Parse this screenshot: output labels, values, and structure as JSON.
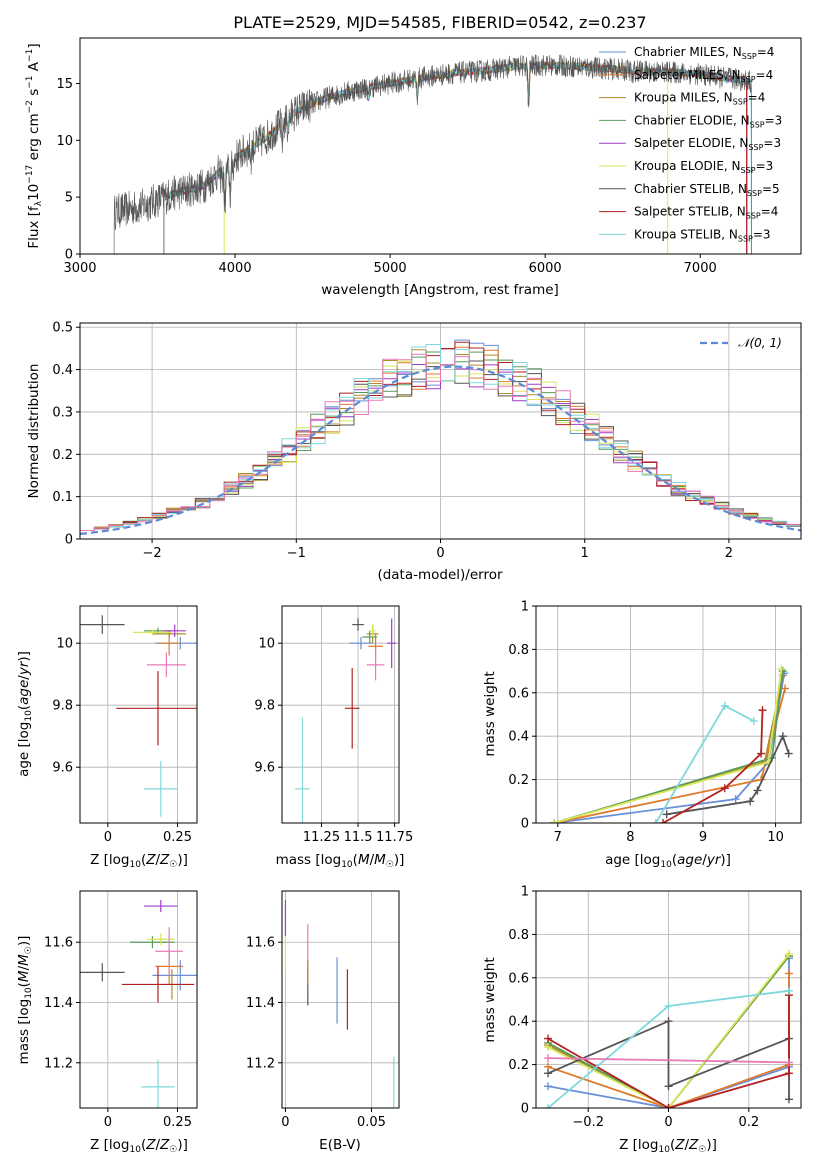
{
  "title": "PLATE=2529, MJD=54585, FIBERID=0542, z=0.237",
  "colors": {
    "chabrier_miles": "#6a8fd8",
    "salpeter_miles": "#e07b2c",
    "kroupa_miles": "#b08a2e",
    "chabrier_elodie": "#5a9a5a",
    "salpeter_elodie": "#a23cc8",
    "kroupa_elodie": "#d8e65a",
    "chabrier_stelib": "#555555",
    "salpeter_stelib": "#b22222",
    "kroupa_stelib": "#7fd8dc",
    "pink": "#e87ab8",
    "gaussian": "#5a8ad8",
    "grid": "#b0b0b0"
  },
  "legend_spectrum": [
    {
      "key": "chabrier_miles",
      "label": "Chabrier MILES, N"
    },
    {
      "key": "salpeter_miles",
      "label": "Salpeter MILES, N"
    },
    {
      "key": "kroupa_miles",
      "label": "Kroupa MILES, N"
    },
    {
      "key": "chabrier_elodie",
      "label": "Chabrier ELODIE, N"
    },
    {
      "key": "salpeter_elodie",
      "label": "Salpeter ELODIE, N"
    },
    {
      "key": "kroupa_elodie",
      "label": "Kroupa ELODIE, N"
    },
    {
      "key": "chabrier_stelib",
      "label": "Chabrier STELIB, N"
    },
    {
      "key": "salpeter_stelib",
      "label": "Salpeter STELIB, N"
    },
    {
      "key": "kroupa_stelib",
      "label": "Kroupa STELIB, N"
    }
  ],
  "legend_nssp": [
    "=4",
    "=4",
    "=4",
    "=3",
    "=3",
    "=3",
    "=5",
    "=4",
    "=3"
  ],
  "legend_sub": "SSP",
  "legend_gauss": "𝒩(0, 1)",
  "chart_data": [
    {
      "type": "line",
      "name": "spectrum",
      "xlabel": "wavelength [Angstrom, rest frame]",
      "ylabel": "Flux [f_λ 10^-17 erg cm^-2 s^-1 A^-1]",
      "xlim": [
        3000,
        7650
      ],
      "ylim": [
        0,
        19
      ],
      "xticks": [
        3000,
        4000,
        5000,
        6000,
        7000
      ],
      "yticks": [
        0,
        5,
        10,
        15
      ],
      "x_start": 3220,
      "x_end": 7330,
      "continuum_x": [
        3220,
        3400,
        3600,
        3800,
        4000,
        4200,
        4400,
        4600,
        4800,
        5000,
        5200,
        5400,
        5600,
        5800,
        6000,
        6200,
        6400,
        6600,
        6800,
        7000,
        7200,
        7330
      ],
      "continuum_y": [
        3.7,
        4.2,
        5.3,
        6.0,
        8.5,
        10.2,
        12.6,
        13.8,
        14.5,
        15.0,
        15.5,
        15.9,
        16.1,
        16.5,
        16.6,
        16.5,
        16.3,
        16.1,
        16.0,
        15.8,
        15.4,
        15.2
      ],
      "grid": false
    },
    {
      "type": "bar",
      "name": "residual-histogram",
      "xlabel": "(data-model)/error",
      "ylabel": "Normed distribution",
      "xlim": [
        -2.5,
        2.5
      ],
      "ylim": [
        0,
        0.51
      ],
      "xticks": [
        -2,
        -1,
        0,
        1,
        2
      ],
      "yticks": [
        0.0,
        0.1,
        0.2,
        0.3,
        0.4,
        0.5
      ],
      "bin_width": 0.1,
      "sigma": 0.98,
      "mu": 0.1,
      "grid": true,
      "legend": "top-right"
    },
    {
      "type": "scatter",
      "name": "age-vs-Z",
      "xlabel": "Z [log10(Z/Z☉)]",
      "ylabel": "age [log10(age/yr)]",
      "xlim": [
        -0.1,
        0.32
      ],
      "ylim": [
        9.42,
        10.12
      ],
      "xticks": [
        0.0,
        0.25
      ],
      "yticks": [
        9.6,
        9.8,
        10.0
      ],
      "points": [
        {
          "key": "chabrier_miles",
          "x": 0.26,
          "y": 10.0,
          "xerr": 0.09,
          "yerr": 0.02
        },
        {
          "key": "salpeter_miles",
          "x": 0.22,
          "y": 10.0,
          "xerr": 0.04,
          "yerr": 0.04
        },
        {
          "key": "kroupa_miles",
          "x": 0.22,
          "y": 10.03,
          "xerr": 0.06,
          "yerr": 0.01
        },
        {
          "key": "chabrier_elodie",
          "x": 0.18,
          "y": 10.04,
          "xerr": 0.05,
          "yerr": 0.01
        },
        {
          "key": "salpeter_elodie",
          "x": 0.24,
          "y": 10.04,
          "xerr": 0.04,
          "yerr": 0.02
        },
        {
          "key": "kroupa_elodie",
          "x": 0.16,
          "y": 10.035,
          "xerr": 0.07,
          "yerr": 0.01
        },
        {
          "key": "chabrier_stelib",
          "x": -0.02,
          "y": 10.06,
          "xerr": 0.08,
          "yerr": 0.03
        },
        {
          "key": "salpeter_stelib",
          "x": 0.18,
          "y": 9.79,
          "xerr": 0.15,
          "yerr": 0.12
        },
        {
          "key": "kroupa_stelib",
          "x": 0.19,
          "y": 9.53,
          "xerr": 0.06,
          "yerr": 0.09
        },
        {
          "key": "pink",
          "x": 0.21,
          "y": 9.93,
          "xerr": 0.07,
          "yerr": 0.04
        }
      ],
      "grid": true
    },
    {
      "type": "scatter",
      "name": "age-vs-mass",
      "xlabel": "mass [log10(M/M☉)]",
      "ylabel": "",
      "xlim": [
        10.98,
        11.78
      ],
      "ylim": [
        9.42,
        10.12
      ],
      "xticks": [
        11.25,
        11.5,
        11.75
      ],
      "yticks": [
        9.6,
        9.8,
        10.0
      ],
      "points": [
        {
          "key": "chabrier_miles",
          "x": 11.52,
          "y": 10.0,
          "xerr": 0.08,
          "yerr": 0.02
        },
        {
          "key": "salpeter_miles",
          "x": 11.62,
          "y": 9.99,
          "xerr": 0.05,
          "yerr": 0.04
        },
        {
          "key": "kroupa_miles",
          "x": 11.6,
          "y": 10.03,
          "xerr": 0.04,
          "yerr": 0.03
        },
        {
          "key": "chabrier_elodie",
          "x": 11.58,
          "y": 10.02,
          "xerr": 0.05,
          "yerr": 0.02
        },
        {
          "key": "salpeter_elodie",
          "x": 11.73,
          "y": 10.0,
          "xerr": 0.03,
          "yerr": 0.08
        },
        {
          "key": "kroupa_elodie",
          "x": 11.6,
          "y": 10.04,
          "xerr": 0.02,
          "yerr": 0.02
        },
        {
          "key": "chabrier_stelib",
          "x": 11.5,
          "y": 10.06,
          "xerr": 0.04,
          "yerr": 0.02
        },
        {
          "key": "salpeter_stelib",
          "x": 11.46,
          "y": 9.79,
          "xerr": 0.05,
          "yerr": 0.13
        },
        {
          "key": "kroupa_stelib",
          "x": 11.12,
          "y": 9.53,
          "xerr": 0.05,
          "yerr": 0.23
        },
        {
          "key": "pink",
          "x": 11.62,
          "y": 9.93,
          "xerr": 0.06,
          "yerr": 0.05
        }
      ],
      "grid": true
    },
    {
      "type": "line",
      "name": "mass-weight-vs-age",
      "xlabel": "age [log10(age/yr)]",
      "ylabel": "mass weight",
      "xlim": [
        6.7,
        10.35
      ],
      "ylim": [
        0,
        1.0
      ],
      "xticks": [
        7,
        8,
        9,
        10
      ],
      "yticks": [
        0.0,
        0.2,
        0.4,
        0.6,
        0.8,
        1.0
      ],
      "series": [
        {
          "key": "chabrier_miles",
          "x": [
            6.95,
            9.45,
            9.9,
            10.12
          ],
          "y": [
            0.0,
            0.11,
            0.28,
            0.69
          ]
        },
        {
          "key": "salpeter_miles",
          "x": [
            6.95,
            9.8,
            10.13
          ],
          "y": [
            0.0,
            0.2,
            0.62
          ]
        },
        {
          "key": "kroupa_miles",
          "x": [
            6.95,
            9.85,
            10.1
          ],
          "y": [
            0.0,
            0.28,
            0.68
          ]
        },
        {
          "key": "chabrier_elodie",
          "x": [
            6.95,
            9.95,
            10.1
          ],
          "y": [
            0.0,
            0.3,
            0.7
          ]
        },
        {
          "key": "kroupa_elodie",
          "x": [
            6.95,
            9.9,
            10.08
          ],
          "y": [
            0.0,
            0.28,
            0.71
          ]
        },
        {
          "key": "chabrier_stelib",
          "x": [
            8.5,
            9.65,
            9.75,
            10.1,
            10.18
          ],
          "y": [
            0.04,
            0.1,
            0.15,
            0.4,
            0.32
          ]
        },
        {
          "key": "salpeter_stelib",
          "x": [
            8.45,
            9.3,
            9.8,
            9.82
          ],
          "y": [
            0.0,
            0.16,
            0.32,
            0.52
          ]
        },
        {
          "key": "kroupa_stelib",
          "x": [
            8.35,
            9.3,
            9.7
          ],
          "y": [
            0.0,
            0.54,
            0.47
          ]
        }
      ],
      "grid": true
    },
    {
      "type": "scatter",
      "name": "mass-vs-Z",
      "xlabel": "Z [log10(Z/Z☉)]",
      "ylabel": "mass [log10(M/M☉)]",
      "xlim": [
        -0.1,
        0.32
      ],
      "ylim": [
        11.05,
        11.77
      ],
      "xticks": [
        0.0,
        0.25
      ],
      "yticks": [
        11.2,
        11.4,
        11.6
      ],
      "points": [
        {
          "key": "chabrier_miles",
          "x": 0.26,
          "y": 11.49,
          "xerr": 0.1,
          "yerr": 0.05
        },
        {
          "key": "salpeter_miles",
          "x": 0.22,
          "y": 11.52,
          "xerr": 0.05,
          "yerr": 0.06
        },
        {
          "key": "kroupa_miles",
          "x": 0.23,
          "y": 11.46,
          "xerr": 0.03,
          "yerr": 0.05
        },
        {
          "key": "chabrier_elodie",
          "x": 0.16,
          "y": 11.6,
          "xerr": 0.08,
          "yerr": 0.02
        },
        {
          "key": "salpeter_elodie",
          "x": 0.19,
          "y": 11.72,
          "xerr": 0.06,
          "yerr": 0.02
        },
        {
          "key": "kroupa_elodie",
          "x": 0.19,
          "y": 11.61,
          "xerr": 0.05,
          "yerr": 0.02
        },
        {
          "key": "chabrier_stelib",
          "x": -0.02,
          "y": 11.5,
          "xerr": 0.08,
          "yerr": 0.03
        },
        {
          "key": "salpeter_stelib",
          "x": 0.18,
          "y": 11.46,
          "xerr": 0.13,
          "yerr": 0.06
        },
        {
          "key": "kroupa_stelib",
          "x": 0.18,
          "y": 11.12,
          "xerr": 0.06,
          "yerr": 0.09
        },
        {
          "key": "pink",
          "x": 0.22,
          "y": 11.57,
          "xerr": 0.05,
          "yerr": 0.08
        }
      ],
      "grid": true
    },
    {
      "type": "scatter",
      "name": "mass-vs-EBV",
      "xlabel": "E(B-V)",
      "ylabel": "",
      "xlim": [
        -0.002,
        0.066
      ],
      "ylim": [
        11.05,
        11.77
      ],
      "xticks": [
        0.0,
        0.05
      ],
      "yticks": [
        11.2,
        11.4,
        11.6
      ],
      "points": [
        {
          "key": "chabrier_miles",
          "x": 0.03,
          "y": 11.44,
          "xerr": 0.0,
          "yerr": 0.11
        },
        {
          "key": "salpeter_elodie",
          "x": 0.0,
          "y": 11.68,
          "xerr": 0.0,
          "yerr": 0.06
        },
        {
          "key": "kroupa_elodie",
          "x": 0.0,
          "y": 11.56,
          "xerr": 0.0,
          "yerr": 0.06
        },
        {
          "key": "chabrier_stelib",
          "x": 0.013,
          "y": 11.45,
          "xerr": 0.0,
          "yerr": 0.06
        },
        {
          "key": "salpeter_stelib",
          "x": 0.036,
          "y": 11.41,
          "xerr": 0.0,
          "yerr": 0.1
        },
        {
          "key": "kroupa_stelib",
          "x": 0.063,
          "y": 11.11,
          "xerr": 0.0,
          "yerr": 0.11
        },
        {
          "key": "pink",
          "x": 0.013,
          "y": 11.56,
          "xerr": 0.0,
          "yerr": 0.1
        },
        {
          "key": "kroupa_miles",
          "x": 0.013,
          "y": 11.5,
          "xerr": 0.0,
          "yerr": 0.04
        }
      ],
      "grid": true
    },
    {
      "type": "line",
      "name": "mass-weight-vs-Z",
      "xlabel": "Z [log10(Z/Z☉)]",
      "ylabel": "mass weight",
      "xlim": [
        -0.33,
        0.33
      ],
      "ylim": [
        0,
        1.0
      ],
      "xticks": [
        -0.2,
        0.0,
        0.2
      ],
      "yticks": [
        0.0,
        0.2,
        0.4,
        0.6,
        0.8,
        1.0
      ],
      "series": [
        {
          "key": "chabrier_miles",
          "x": [
            -0.3,
            0.0,
            0.3,
            0.3
          ],
          "y": [
            0.1,
            0.0,
            0.19,
            0.69
          ]
        },
        {
          "key": "salpeter_miles",
          "x": [
            -0.3,
            0.0,
            0.3,
            0.3
          ],
          "y": [
            0.19,
            0.0,
            0.2,
            0.62
          ]
        },
        {
          "key": "kroupa_miles",
          "x": [
            -0.3,
            0.0,
            0.3
          ],
          "y": [
            0.29,
            0.0,
            0.7
          ]
        },
        {
          "key": "chabrier_elodie",
          "x": [
            -0.3,
            0.0,
            0.3
          ],
          "y": [
            0.3,
            0.0,
            0.7
          ]
        },
        {
          "key": "kroupa_elodie",
          "x": [
            -0.3,
            0.0,
            0.3
          ],
          "y": [
            0.28,
            0.0,
            0.71
          ]
        },
        {
          "key": "chabrier_stelib",
          "x": [
            -0.3,
            0.0,
            0.0,
            0.3,
            0.3
          ],
          "y": [
            0.16,
            0.4,
            0.1,
            0.32,
            0.04
          ]
        },
        {
          "key": "salpeter_stelib",
          "x": [
            -0.3,
            0.0,
            0.3,
            0.3
          ],
          "y": [
            0.32,
            0.0,
            0.16,
            0.52
          ]
        },
        {
          "key": "kroupa_stelib",
          "x": [
            -0.3,
            0.0,
            0.3
          ],
          "y": [
            0.0,
            0.47,
            0.54
          ]
        },
        {
          "key": "pink",
          "x": [
            -0.3,
            0.3
          ],
          "y": [
            0.23,
            0.21
          ]
        }
      ],
      "grid": true
    }
  ]
}
